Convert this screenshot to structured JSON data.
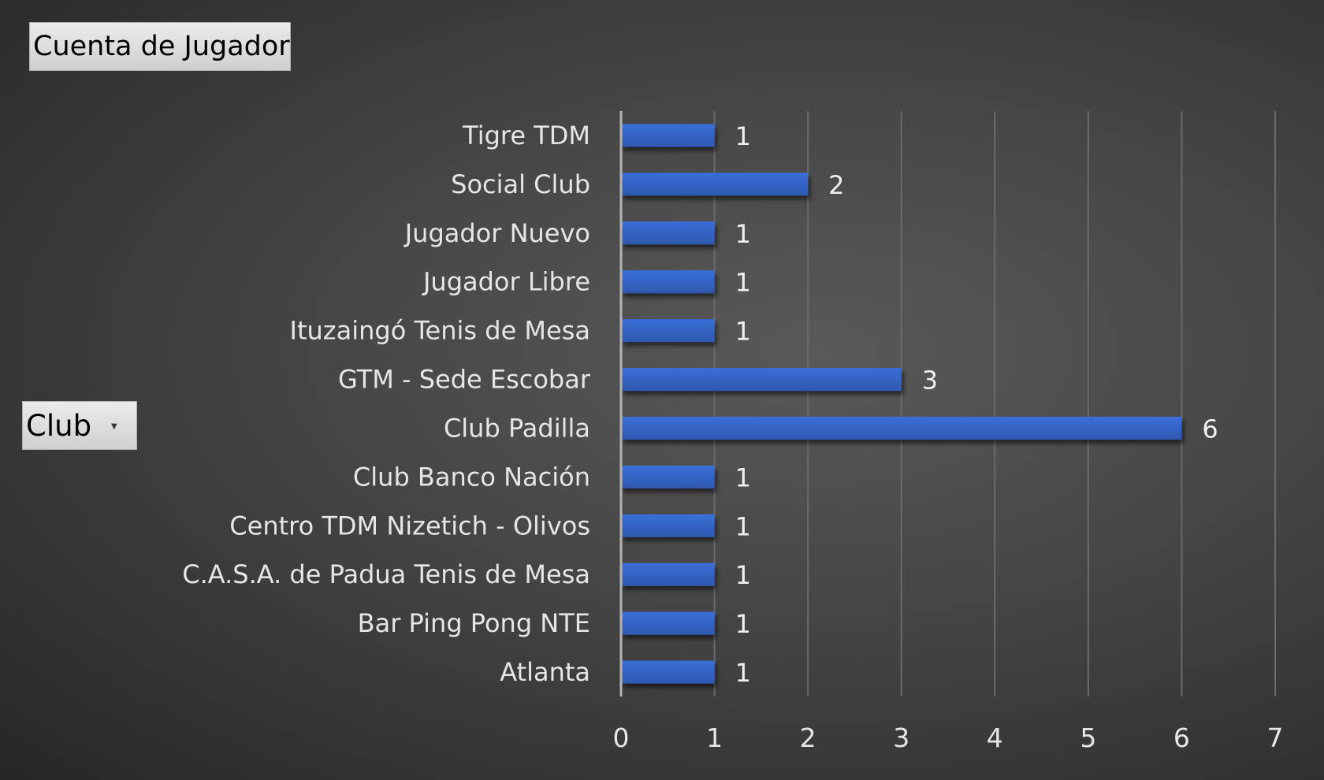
{
  "pivot": {
    "value_field": "Cuenta de Jugador",
    "axis_field": "Club",
    "axis_dropdown_icon": "dropdown-arrow-icon"
  },
  "colors": {
    "bar": "#3a6fd8",
    "bar_shade": "#2e58b0",
    "gridline": "#6b6b6b",
    "axis_line": "#b5b5b5",
    "text": "#e6e6e6"
  },
  "chart_data": {
    "type": "bar",
    "orientation": "horizontal",
    "categories": [
      "Tigre TDM",
      "Social Club",
      "Jugador Nuevo",
      "Jugador Libre",
      "Ituzaingó Tenis de Mesa",
      "GTM - Sede Escobar",
      "Club Padilla",
      "Club Banco Nación",
      "Centro TDM Nizetich - Olivos",
      "C.A.S.A. de Padua Tenis de Mesa",
      "Bar Ping Pong NTE",
      "Atlanta"
    ],
    "values": [
      1,
      2,
      1,
      1,
      1,
      3,
      6,
      1,
      1,
      1,
      1,
      1
    ],
    "xlim": [
      0,
      7
    ],
    "xticks": [
      "0",
      "1",
      "2",
      "3",
      "4",
      "5",
      "6",
      "7"
    ],
    "grid": true,
    "data_labels": true
  }
}
